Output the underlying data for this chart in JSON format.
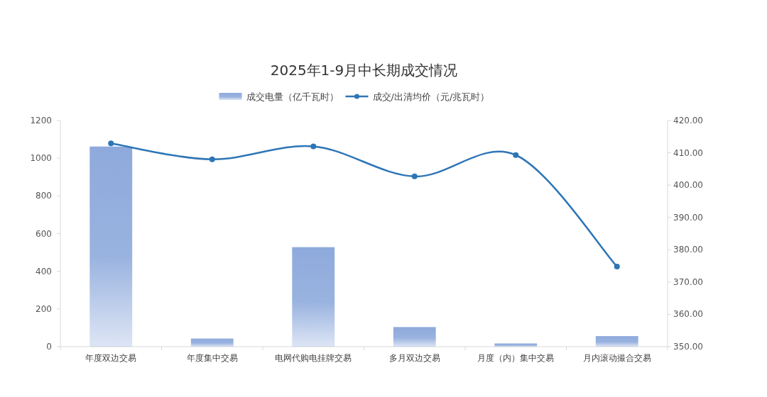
{
  "chart_data": {
    "type": "bar",
    "title": "2025年1-9月中长期成交情况",
    "categories": [
      "年度双边交易",
      "年度集中交易",
      "电网代购电挂牌交易",
      "多月双边交易",
      "月度（内）集中交易",
      "月内滚动撮合交易"
    ],
    "series": [
      {
        "name": "成交电量（亿千瓦时）",
        "color": "#8eaadc",
        "values": [
          1062,
          43,
          528,
          104,
          17,
          56
        ]
      },
      {
        "name": "成交/出清均价（元/兆瓦时）",
        "type": "line",
        "axis": "y2",
        "color": "#2e75b6",
        "marker": "circle",
        "values": [
          412.9,
          408.0,
          412.0,
          402.7,
          409.3,
          374.8
        ]
      }
    ],
    "ylim": [
      0,
      1200
    ],
    "yticks": [
      0,
      200,
      400,
      600,
      800,
      1000,
      1200
    ],
    "y2lim": [
      350,
      420
    ],
    "y2ticks": [
      {
        "value": 350,
        "label": "350.00"
      },
      {
        "value": 360,
        "label": "360.00"
      },
      {
        "value": 370,
        "label": "370.00"
      },
      {
        "value": 380,
        "label": "380.00"
      },
      {
        "value": 390,
        "label": "390.00"
      },
      {
        "value": 400,
        "label": "400.00"
      },
      {
        "value": 410,
        "label": "410.00"
      },
      {
        "value": 420,
        "label": "420.00"
      }
    ],
    "legend": "top"
  }
}
